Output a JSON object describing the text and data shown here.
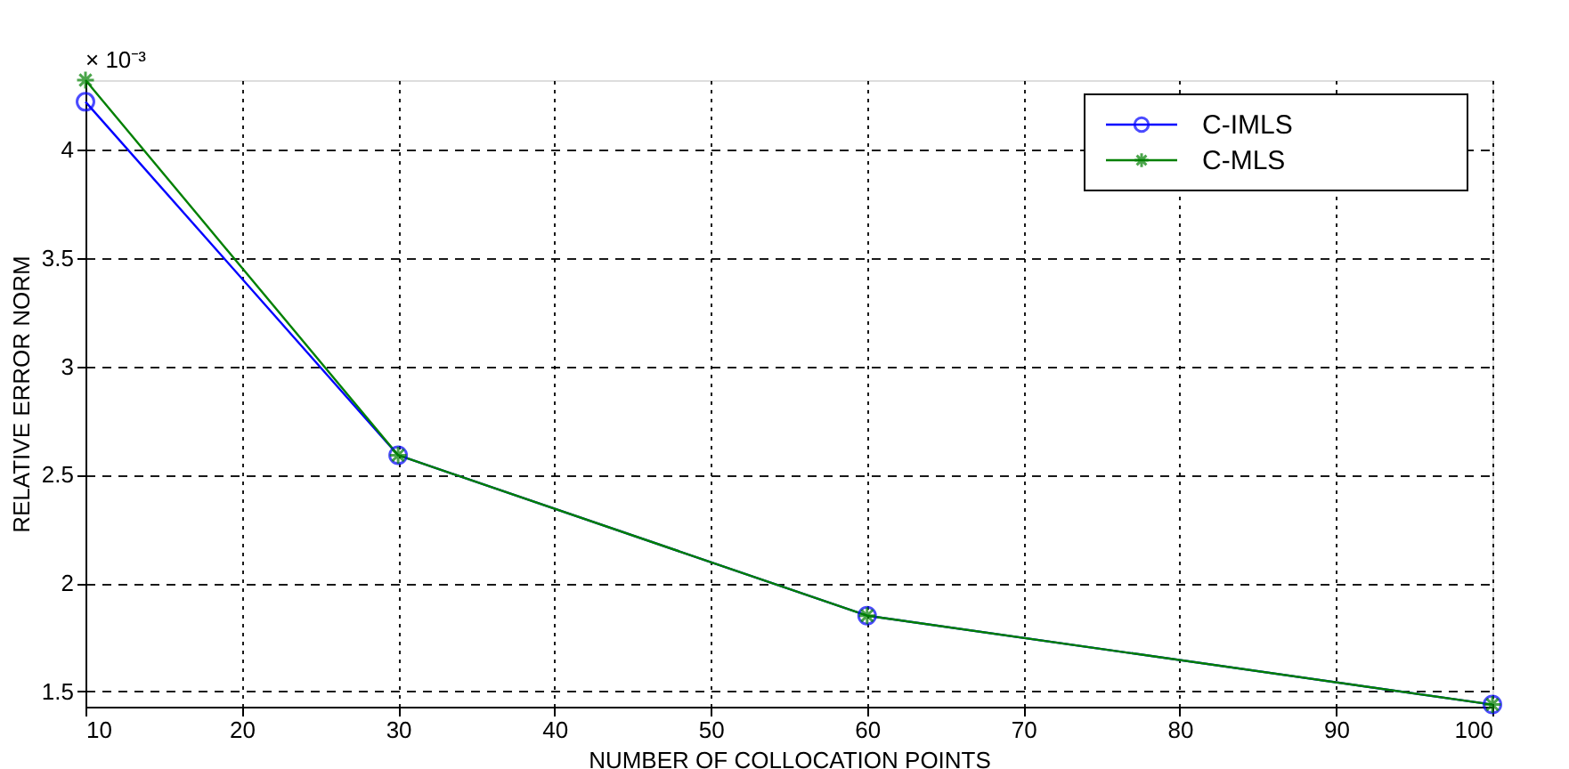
{
  "chart_data": {
    "type": "line",
    "xlabel": "NUMBER  OF  COLLOCATION  POINTS",
    "ylabel": "RELATIVE  ERROR  NORM",
    "annotations": [
      "× 10⁻³"
    ],
    "x": [
      10,
      30,
      60,
      100
    ],
    "series": [
      {
        "name": "C-IMLS",
        "color": "#0000ff",
        "marker": "circle",
        "values": [
          4.22,
          2.59,
          1.85,
          1.44
        ]
      },
      {
        "name": "C-MLS",
        "color": "#008000",
        "marker": "cross",
        "values": [
          4.32,
          2.59,
          1.85,
          1.44
        ]
      }
    ],
    "xlim": [
      10,
      100
    ],
    "xticks": [
      10,
      20,
      30,
      40,
      50,
      60,
      70,
      80,
      90,
      100
    ],
    "ylim": [
      1.43,
      4.32
    ],
    "yticks": [
      1.5,
      2,
      2.5,
      3,
      3.5,
      4
    ],
    "grid": true,
    "legend": "top right",
    "line_style": "solid"
  }
}
